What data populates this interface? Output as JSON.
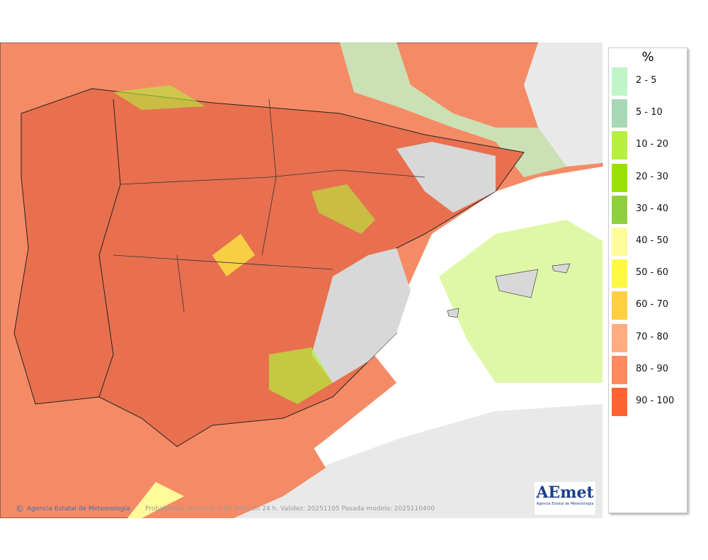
{
  "legend": {
    "title": "%",
    "items": [
      {
        "label": "2 - 5",
        "color": "#c0f5c8"
      },
      {
        "label": "5 - 10",
        "color": "#a8d8b4"
      },
      {
        "label": "10 - 20",
        "color": "#b6f03c"
      },
      {
        "label": "20 - 30",
        "color": "#9ae000"
      },
      {
        "label": "30 - 40",
        "color": "#90d040"
      },
      {
        "label": "40 - 50",
        "color": "#fffa9a"
      },
      {
        "label": "50 - 60",
        "color": "#fff840"
      },
      {
        "label": "60 - 70",
        "color": "#ffd040"
      },
      {
        "label": "70 - 80",
        "color": "#ffac80"
      },
      {
        "label": "80 - 90",
        "color": "#ff8c60"
      },
      {
        "label": "90 - 100",
        "color": "#ff6432"
      }
    ]
  },
  "footer": {
    "agency": "Agencia Estatal de Meteorología",
    "caption": "Probabilidad de racha > 40 km/h en 24 h. Validez: 20251105 Pasada modelo: 2025110400"
  },
  "logo": {
    "name": "AEmet",
    "subtitle": "Agencia Estatal de Meteorología"
  }
}
